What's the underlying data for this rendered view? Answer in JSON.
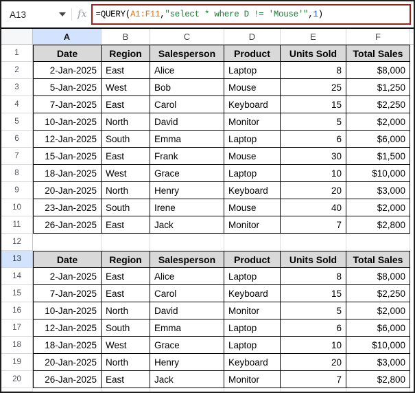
{
  "colors": {
    "selection_border": "#9a221d",
    "table_header_fill": "#d9d9d9",
    "selected_header_fill": "#d3e3fd",
    "fill_handle": "#2a5bd7",
    "formula_range_color": "#e8710a",
    "formula_string_color": "#188038",
    "formula_number_color": "#1155cc"
  },
  "formula_bar": {
    "name_box_value": "A13",
    "fx_icon": "fx",
    "formula_full": "=QUERY(A1:F11, \"select * where D != 'Mouse'\", 1)",
    "formula_segments": [
      {
        "text": "=QUERY(",
        "color": "#000000"
      },
      {
        "text": "A1:F11",
        "color": "#e8710a"
      },
      {
        "text": ", ",
        "color": "#000000"
      },
      {
        "text": "\"select * where D != 'Mouse'\"",
        "color": "#188038"
      },
      {
        "text": ", ",
        "color": "#000000"
      },
      {
        "text": "1",
        "color": "#1155cc"
      },
      {
        "text": ")",
        "color": "#000000"
      }
    ]
  },
  "grid": {
    "column_letters": [
      "A",
      "B",
      "C",
      "D",
      "E",
      "F"
    ],
    "column_alignments": [
      "right",
      "left",
      "left",
      "left",
      "right",
      "right"
    ],
    "selected_column_letter": "A",
    "selected_row_number": 13,
    "selected_cell_ref": "A13",
    "rows": [
      {
        "n": 1,
        "kind": "header",
        "cells": [
          "Date",
          "Region",
          "Salesperson",
          "Product",
          "Units Sold",
          "Total Sales"
        ]
      },
      {
        "n": 2,
        "kind": "data",
        "cells": [
          "2-Jan-2025",
          "East",
          "Alice",
          "Laptop",
          "8",
          "$8,000"
        ]
      },
      {
        "n": 3,
        "kind": "data",
        "cells": [
          "5-Jan-2025",
          "West",
          "Bob",
          "Mouse",
          "25",
          "$1,250"
        ]
      },
      {
        "n": 4,
        "kind": "data",
        "cells": [
          "7-Jan-2025",
          "East",
          "Carol",
          "Keyboard",
          "15",
          "$2,250"
        ]
      },
      {
        "n": 5,
        "kind": "data",
        "cells": [
          "10-Jan-2025",
          "North",
          "David",
          "Monitor",
          "5",
          "$2,000"
        ]
      },
      {
        "n": 6,
        "kind": "data",
        "cells": [
          "12-Jan-2025",
          "South",
          "Emma",
          "Laptop",
          "6",
          "$6,000"
        ]
      },
      {
        "n": 7,
        "kind": "data",
        "cells": [
          "15-Jan-2025",
          "East",
          "Frank",
          "Mouse",
          "30",
          "$1,500"
        ]
      },
      {
        "n": 8,
        "kind": "data",
        "cells": [
          "18-Jan-2025",
          "West",
          "Grace",
          "Laptop",
          "10",
          "$10,000"
        ]
      },
      {
        "n": 9,
        "kind": "data",
        "cells": [
          "20-Jan-2025",
          "North",
          "Henry",
          "Keyboard",
          "20",
          "$3,000"
        ]
      },
      {
        "n": 10,
        "kind": "data",
        "cells": [
          "23-Jan-2025",
          "South",
          "Irene",
          "Mouse",
          "40",
          "$2,000"
        ]
      },
      {
        "n": 11,
        "kind": "data",
        "cells": [
          "26-Jan-2025",
          "East",
          "Jack",
          "Monitor",
          "7",
          "$2,800"
        ]
      },
      {
        "n": 12,
        "kind": "empty",
        "cells": [
          "",
          "",
          "",
          "",
          "",
          ""
        ]
      },
      {
        "n": 13,
        "kind": "header",
        "selected": "A",
        "cells": [
          "Date",
          "Region",
          "Salesperson",
          "Product",
          "Units Sold",
          "Total Sales"
        ]
      },
      {
        "n": 14,
        "kind": "data",
        "cells": [
          "2-Jan-2025",
          "East",
          "Alice",
          "Laptop",
          "8",
          "$8,000"
        ]
      },
      {
        "n": 15,
        "kind": "data",
        "cells": [
          "7-Jan-2025",
          "East",
          "Carol",
          "Keyboard",
          "15",
          "$2,250"
        ]
      },
      {
        "n": 16,
        "kind": "data",
        "cells": [
          "10-Jan-2025",
          "North",
          "David",
          "Monitor",
          "5",
          "$2,000"
        ]
      },
      {
        "n": 17,
        "kind": "data",
        "cells": [
          "12-Jan-2025",
          "South",
          "Emma",
          "Laptop",
          "6",
          "$6,000"
        ]
      },
      {
        "n": 18,
        "kind": "data",
        "cells": [
          "18-Jan-2025",
          "West",
          "Grace",
          "Laptop",
          "10",
          "$10,000"
        ]
      },
      {
        "n": 19,
        "kind": "data",
        "cells": [
          "20-Jan-2025",
          "North",
          "Henry",
          "Keyboard",
          "20",
          "$3,000"
        ]
      },
      {
        "n": 20,
        "kind": "data",
        "cells": [
          "26-Jan-2025",
          "East",
          "Jack",
          "Monitor",
          "7",
          "$2,800"
        ]
      }
    ]
  }
}
